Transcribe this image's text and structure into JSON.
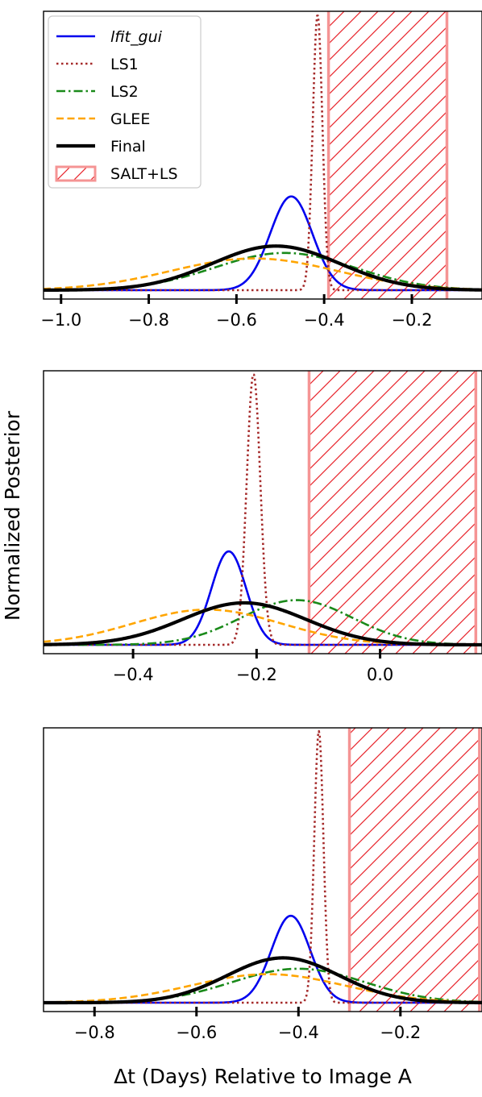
{
  "figure": {
    "ylabel": "Normalized Posterior",
    "xlabel": "Δt (Days) Relative to Image A"
  },
  "legend": [
    {
      "label": "lfit_gui",
      "italic": true,
      "style": "solid",
      "color": "#0000ee"
    },
    {
      "label": "LS1",
      "style": "dotted",
      "color": "#a52a2a"
    },
    {
      "label": "LS2",
      "style": "dashdot",
      "color": "#1a8a1a"
    },
    {
      "label": "GLEE",
      "style": "dashed",
      "color": "#ffa500"
    },
    {
      "label": "Final",
      "style": "thick",
      "color": "#000000"
    },
    {
      "label": "SALT+LS",
      "style": "hatch",
      "color": "#f08080"
    }
  ],
  "chart_data": [
    {
      "type": "line",
      "panel": "top",
      "xlim": [
        -1.04,
        -0.04
      ],
      "xticks": [
        -1.0,
        -0.8,
        -0.6,
        -0.4,
        -0.2
      ],
      "xtick_labels": [
        "−1.0",
        "−0.8",
        "−0.6",
        "−0.4",
        "−0.2"
      ],
      "ylim": [
        0,
        1.05
      ],
      "hatch_band": [
        -0.39,
        -0.12
      ],
      "curves": [
        {
          "name": "lfit_gui",
          "mu": -0.475,
          "sigma": 0.048,
          "peak": 0.34
        },
        {
          "name": "LS1",
          "mu": -0.415,
          "sigma": 0.011,
          "peak": 1.0
        },
        {
          "name": "LS2",
          "mu": -0.49,
          "sigma": 0.16,
          "peak": 0.135
        },
        {
          "name": "GLEE",
          "mu": -0.56,
          "sigma": 0.19,
          "peak": 0.115
        },
        {
          "name": "Final",
          "mu": -0.51,
          "sigma": 0.145,
          "peak": 0.16
        }
      ]
    },
    {
      "type": "line",
      "panel": "middle",
      "xlim": [
        -0.545,
        0.165
      ],
      "xticks": [
        -0.4,
        -0.2,
        0.0
      ],
      "xtick_labels": [
        "−0.4",
        "−0.2",
        "0.0"
      ],
      "ylim": [
        0,
        1.05
      ],
      "hatch_band": [
        -0.115,
        0.155
      ],
      "curves": [
        {
          "name": "lfit_gui",
          "mu": -0.245,
          "sigma": 0.028,
          "peak": 0.345
        },
        {
          "name": "LS1",
          "mu": -0.205,
          "sigma": 0.011,
          "peak": 1.0
        },
        {
          "name": "LS2",
          "mu": -0.135,
          "sigma": 0.09,
          "peak": 0.165
        },
        {
          "name": "GLEE",
          "mu": -0.28,
          "sigma": 0.12,
          "peak": 0.13
        },
        {
          "name": "Final",
          "mu": -0.22,
          "sigma": 0.1,
          "peak": 0.155
        }
      ]
    },
    {
      "type": "line",
      "panel": "bottom",
      "xlim": [
        -0.9,
        -0.04
      ],
      "xticks": [
        -0.8,
        -0.6,
        -0.4,
        -0.2
      ],
      "xtick_labels": [
        "−0.8",
        "−0.6",
        "−0.4",
        "−0.2"
      ],
      "ylim": [
        0,
        1.05
      ],
      "hatch_band": [
        -0.3,
        -0.045
      ],
      "curves": [
        {
          "name": "lfit_gui",
          "mu": -0.415,
          "sigma": 0.038,
          "peak": 0.32
        },
        {
          "name": "LS1",
          "mu": -0.36,
          "sigma": 0.009,
          "peak": 1.0
        },
        {
          "name": "LS2",
          "mu": -0.4,
          "sigma": 0.13,
          "peak": 0.125
        },
        {
          "name": "GLEE",
          "mu": -0.46,
          "sigma": 0.15,
          "peak": 0.105
        },
        {
          "name": "Final",
          "mu": -0.43,
          "sigma": 0.11,
          "peak": 0.165
        }
      ]
    }
  ]
}
